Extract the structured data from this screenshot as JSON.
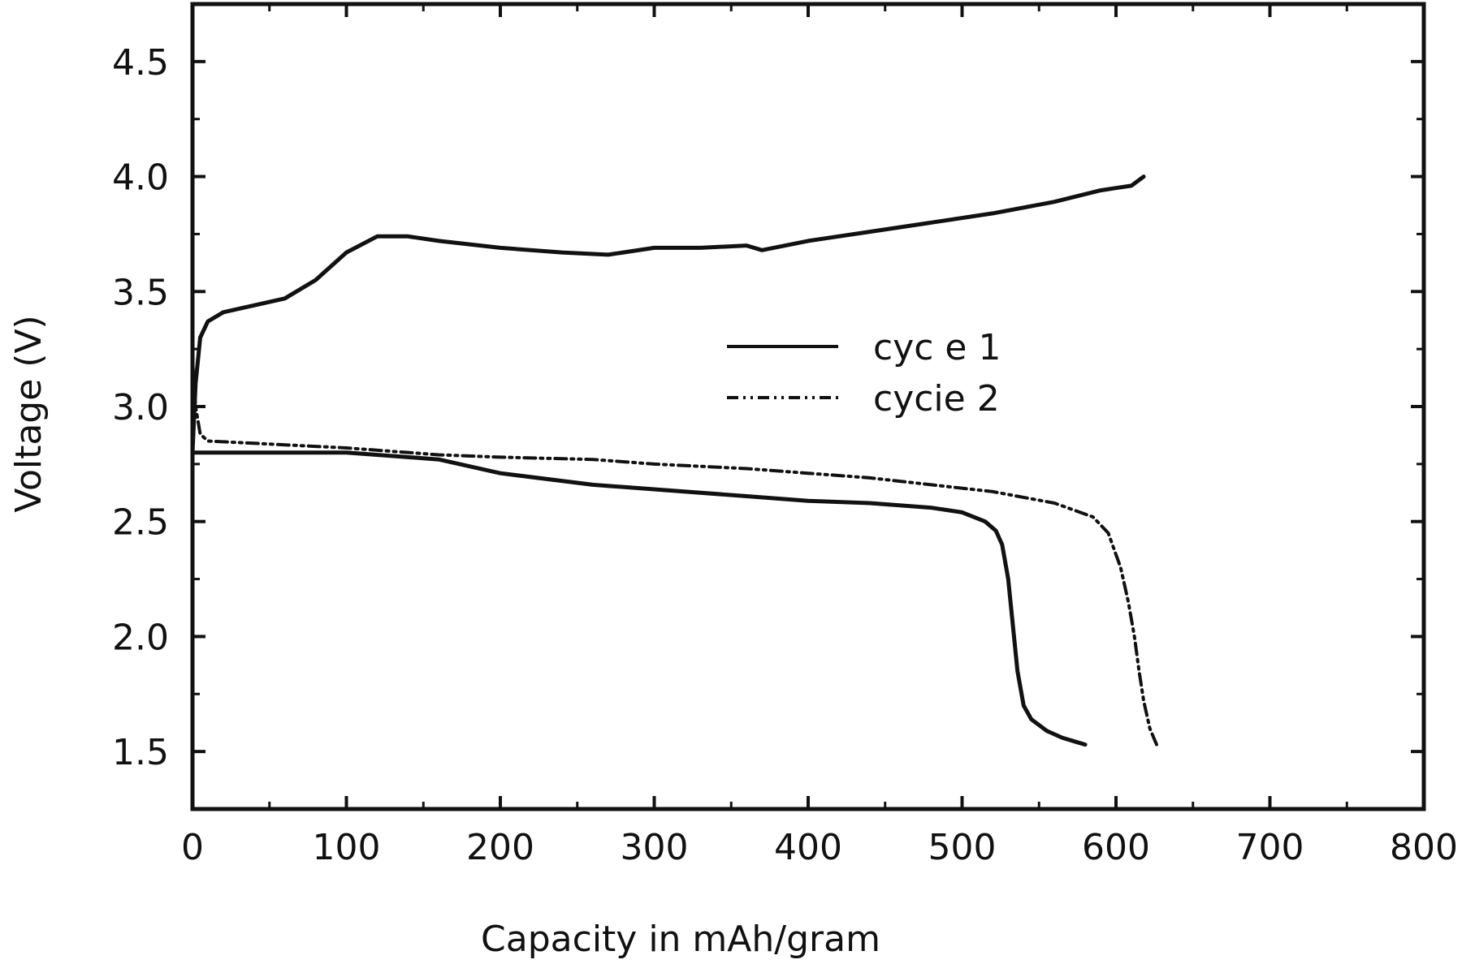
{
  "chart_data": {
    "type": "line",
    "title": "",
    "xlabel": "Capacity in  mAh/gram",
    "ylabel": "Voltage (V)",
    "xlim": [
      0,
      800
    ],
    "ylim": [
      1.25,
      4.75
    ],
    "xticks": [
      0,
      100,
      200,
      300,
      400,
      500,
      600,
      700,
      800
    ],
    "xtick_labels": [
      "0",
      "100",
      "200",
      "300",
      "400",
      "500",
      "600",
      "700",
      "800"
    ],
    "yticks": [
      1.5,
      2.0,
      2.5,
      3.0,
      3.5,
      4.0,
      4.5
    ],
    "ytick_labels": [
      "1.5",
      "2.0",
      "2.5",
      "3.0",
      "3.5",
      "4.0",
      "4.5"
    ],
    "grid": false,
    "legend_position": "center-right",
    "series": [
      {
        "name": "cyc e 1",
        "style": "solid",
        "color": "#111111",
        "segments": [
          {
            "x": [
              0,
              2,
              5,
              10,
              20,
              40,
              60,
              80,
              100,
              120,
              140,
              160,
              200,
              240,
              270,
              300,
              330,
              360,
              370,
              400,
              440,
              480,
              520,
              560,
              590,
              600,
              610,
              618
            ],
            "y": [
              2.8,
              3.1,
              3.3,
              3.37,
              3.41,
              3.44,
              3.47,
              3.55,
              3.67,
              3.74,
              3.74,
              3.72,
              3.69,
              3.67,
              3.66,
              3.69,
              3.69,
              3.7,
              3.68,
              3.72,
              3.76,
              3.8,
              3.84,
              3.89,
              3.94,
              3.95,
              3.96,
              4.0
            ]
          },
          {
            "x": [
              0,
              40,
              100,
              160,
              200,
              260,
              300,
              360,
              400,
              440,
              480,
              500,
              515,
              522,
              526,
              530,
              533,
              536,
              540,
              545,
              555,
              565,
              575,
              580
            ],
            "y": [
              2.8,
              2.8,
              2.8,
              2.77,
              2.71,
              2.66,
              2.64,
              2.61,
              2.59,
              2.58,
              2.56,
              2.54,
              2.5,
              2.46,
              2.4,
              2.25,
              2.05,
              1.85,
              1.7,
              1.64,
              1.59,
              1.56,
              1.54,
              1.53
            ]
          }
        ]
      },
      {
        "name": "cycie 2",
        "style": "dash-dot",
        "color": "#111111",
        "segments": [
          {
            "x": [
              0,
              2,
              5,
              10,
              40,
              100,
              160,
              200,
              260,
              300,
              360,
              400,
              440,
              480,
              520,
              560,
              585,
              595,
              603,
              608,
              612,
              615,
              618,
              622,
              627
            ],
            "y": [
              3.2,
              3.0,
              2.88,
              2.85,
              2.84,
              2.82,
              2.79,
              2.78,
              2.77,
              2.75,
              2.73,
              2.71,
              2.69,
              2.66,
              2.63,
              2.58,
              2.52,
              2.45,
              2.3,
              2.15,
              2.0,
              1.85,
              1.72,
              1.6,
              1.52
            ]
          }
        ]
      }
    ]
  }
}
